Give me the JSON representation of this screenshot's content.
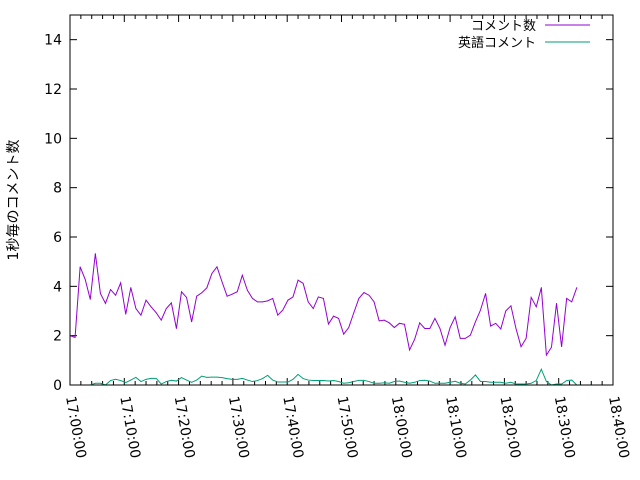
{
  "chart_data": {
    "type": "line",
    "title": "",
    "xlabel": "",
    "ylabel": "1秒毎のコメント数",
    "x_start": "17:00:00",
    "x_interval_seconds": 56,
    "xlim": [
      "17:00:00",
      "18:40:00"
    ],
    "ylim": [
      0,
      15
    ],
    "x_ticks": [
      "17:00:00",
      "17:10:00",
      "17:20:00",
      "17:30:00",
      "17:40:00",
      "17:50:00",
      "18:00:00",
      "18:10:00",
      "18:20:00",
      "18:30:00",
      "18:40:00"
    ],
    "y_ticks": [
      "0",
      "2",
      "4",
      "6",
      "8",
      "10",
      "12",
      "14"
    ],
    "grid": false,
    "legend_position": "top-right",
    "series": [
      {
        "name": "コメント数",
        "color": "#9400d3",
        "values": [
          2.0,
          1.93,
          4.79,
          4.28,
          3.47,
          5.33,
          3.71,
          3.31,
          3.87,
          3.64,
          4.14,
          2.87,
          3.95,
          3.1,
          2.83,
          3.44,
          3.17,
          2.93,
          2.63,
          3.1,
          3.33,
          2.29,
          3.78,
          3.55,
          2.56,
          3.6,
          3.74,
          3.94,
          4.52,
          4.79,
          4.18,
          3.6,
          3.68,
          3.78,
          4.45,
          3.84,
          3.51,
          3.37,
          3.37,
          3.41,
          3.51,
          2.83,
          3.04,
          3.44,
          3.57,
          4.25,
          4.12,
          3.37,
          3.1,
          3.57,
          3.51,
          2.47,
          2.79,
          2.7,
          2.06,
          2.33,
          2.93,
          3.51,
          3.75,
          3.64,
          3.37,
          2.6,
          2.63,
          2.52,
          2.33,
          2.5,
          2.46,
          1.42,
          1.85,
          2.52,
          2.29,
          2.29,
          2.7,
          2.29,
          1.61,
          2.33,
          2.76,
          1.89,
          1.89,
          2.02,
          2.56,
          3.04,
          3.71,
          2.39,
          2.5,
          2.27,
          3.01,
          3.21,
          2.29,
          1.55,
          1.89,
          3.55,
          3.17,
          3.95,
          1.21,
          1.53,
          3.31,
          1.55,
          3.51,
          3.37,
          3.95
        ]
      },
      {
        "name": "英語コメント",
        "color": "#009e73",
        "values": [
          0,
          0,
          0,
          0,
          0,
          0.07,
          0.07,
          0,
          0.18,
          0.23,
          0.18,
          0.1,
          0.2,
          0.31,
          0.14,
          0.23,
          0.27,
          0.27,
          0.04,
          0.14,
          0.19,
          0.16,
          0.3,
          0.2,
          0.11,
          0.2,
          0.36,
          0.31,
          0.32,
          0.32,
          0.3,
          0.26,
          0.23,
          0.23,
          0.27,
          0.2,
          0.14,
          0.18,
          0.26,
          0.39,
          0.2,
          0.12,
          0.12,
          0.12,
          0.23,
          0.43,
          0.26,
          0.2,
          0.18,
          0.18,
          0.18,
          0.16,
          0.18,
          0.14,
          0.07,
          0.09,
          0.14,
          0.19,
          0.19,
          0.14,
          0.07,
          0.07,
          0.09,
          0.07,
          0.14,
          0.16,
          0.11,
          0.07,
          0.11,
          0.18,
          0.19,
          0.16,
          0.07,
          0.07,
          0.07,
          0.11,
          0.15,
          0.07,
          0.04,
          0.2,
          0.41,
          0.14,
          0.14,
          0.11,
          0.11,
          0.11,
          0.07,
          0.11,
          0.04,
          0.04,
          0.04,
          0.07,
          0.18,
          0.64,
          0.14,
          0,
          0.04,
          0.04,
          0.18,
          0.2,
          0
        ]
      }
    ]
  }
}
